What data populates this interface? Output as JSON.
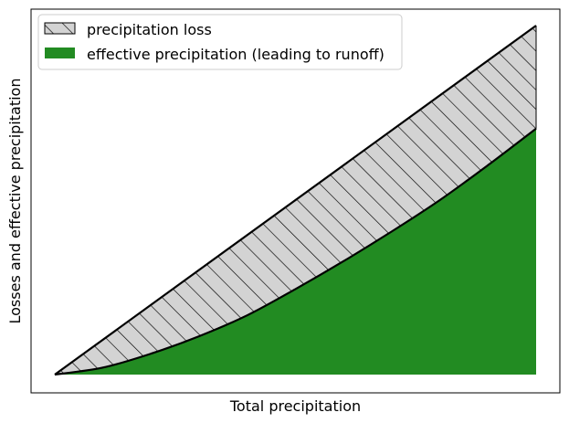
{
  "chart_data": {
    "type": "area",
    "title": "",
    "xlabel": "Total precipitation",
    "ylabel": "Losses and effective precipitation",
    "xticks": "none",
    "yticks": "none",
    "grid": false,
    "legend_position": "top-left",
    "x": [
      0,
      0.1,
      0.2,
      0.3,
      0.4,
      0.5,
      0.6,
      0.7,
      0.8,
      0.9,
      1.0
    ],
    "series": [
      {
        "name": "precipitation loss",
        "description_role": "band between total precipitation line and effective precipitation curve",
        "upper": [
          0,
          0.1,
          0.2,
          0.3,
          0.4,
          0.5,
          0.6,
          0.7,
          0.8,
          0.9,
          1.0
        ],
        "fill": "#d3d3d3",
        "hatch": "diagonal"
      },
      {
        "name": "effective precipitation (leading to runoff)",
        "values": [
          0,
          0.02,
          0.06,
          0.11,
          0.17,
          0.245,
          0.325,
          0.41,
          0.5,
          0.6,
          0.705
        ],
        "fill": "#228b22"
      }
    ]
  }
}
